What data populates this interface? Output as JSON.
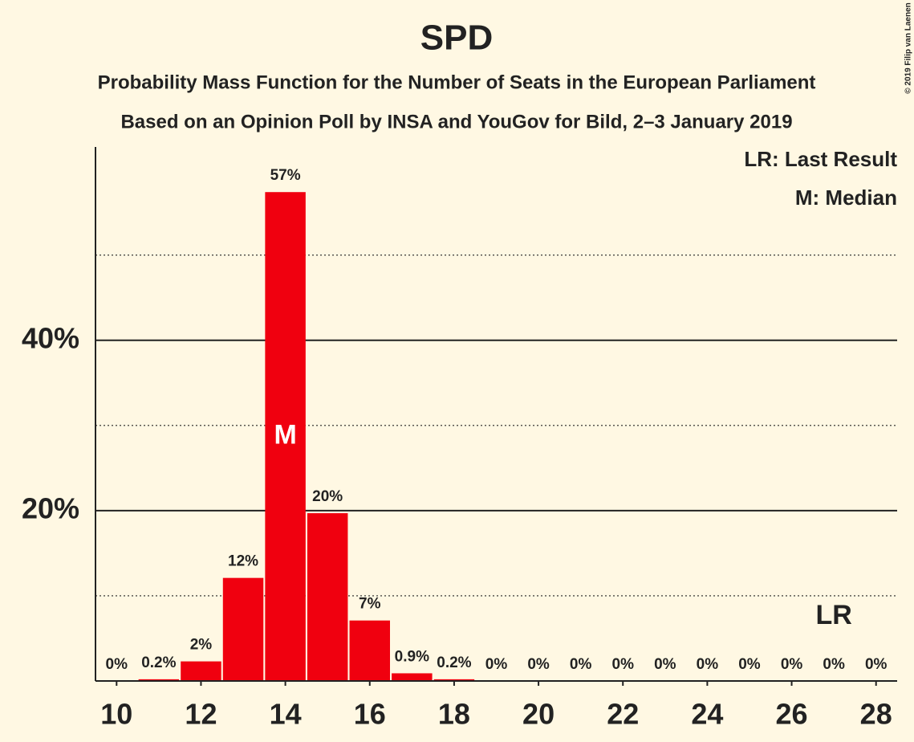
{
  "chart_data": {
    "type": "bar",
    "title": "SPD",
    "subtitle": "Probability Mass Function for the Number of Seats in the European Parliament",
    "subtitle2": "Based on an Opinion Poll by INSA and YouGov for Bild, 2–3 January 2019",
    "copyright": "© 2019 Filip van Laenen",
    "legend": [
      "LR: Last Result",
      "M: Median"
    ],
    "x": [
      10,
      11,
      12,
      13,
      14,
      15,
      16,
      17,
      18,
      19,
      20,
      21,
      22,
      23,
      24,
      25,
      26,
      27,
      28
    ],
    "values": [
      0,
      0.2,
      2.3,
      12.1,
      57.4,
      19.7,
      7.1,
      0.9,
      0.2,
      0,
      0,
      0,
      0,
      0,
      0,
      0,
      0,
      0,
      0
    ],
    "value_labels": [
      "0%",
      "0.2%",
      "2%",
      "12%",
      "57%",
      "20%",
      "7%",
      "0.9%",
      "0.2%",
      "0%",
      "0%",
      "0%",
      "0%",
      "0%",
      "0%",
      "0%",
      "0%",
      "0%",
      "0%"
    ],
    "color": "#f0000f",
    "median": 14,
    "median_label": "M",
    "last_result": 27,
    "last_result_label": "LR",
    "xlim": [
      9.5,
      28.5
    ],
    "xticks": [
      10,
      12,
      14,
      16,
      18,
      20,
      22,
      24,
      26,
      28
    ],
    "ylim": [
      0,
      62.7
    ],
    "yticks": [
      {
        "value": 20,
        "label": "20%"
      },
      {
        "value": 40,
        "label": "40%"
      }
    ],
    "minor_yticks": [
      10,
      30,
      50
    ],
    "grid": true
  }
}
